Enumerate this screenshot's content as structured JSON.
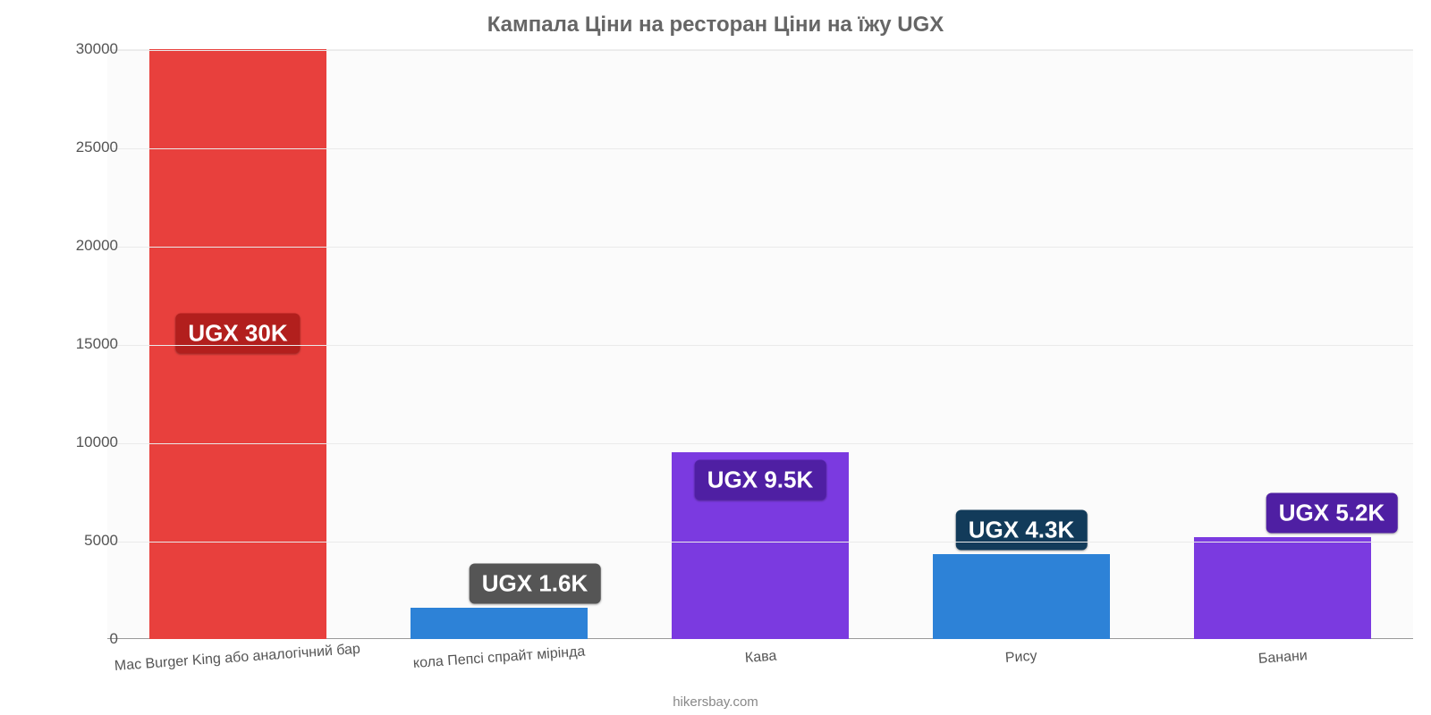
{
  "chart": {
    "type": "bar",
    "title": "Кампала Ціни на ресторан Ціни на їжу UGX",
    "title_fontsize": 24,
    "title_color": "#666666",
    "background_color": "#ffffff",
    "plot_background_color": "#fbfbfb",
    "grid_color": "#eaeaea",
    "axis_color": "#999999",
    "tick_color": "#555555",
    "tick_fontsize": 17,
    "xlabel_fontsize": 16,
    "credit": "hikersbay.com",
    "credit_fontsize": 15,
    "credit_color": "#888888",
    "ylim": [
      0,
      30000
    ],
    "yticks": [
      0,
      5000,
      10000,
      15000,
      20000,
      25000,
      30000
    ],
    "categories": [
      "Mac Burger King або аналогічний бар",
      "кола Пепсі спрайт мірінда",
      "Кава",
      "Рису",
      "Банани"
    ],
    "values": [
      30000,
      1600,
      9500,
      4300,
      5200
    ],
    "bar_colors": [
      "#e8403d",
      "#2d82d7",
      "#7b3ae0",
      "#2d82d7",
      "#7b3ae0"
    ],
    "value_labels": [
      "UGX 30K",
      "UGX 1.6K",
      "UGX 9.5K",
      "UGX 4.3K",
      "UGX 5.2K"
    ],
    "badge_colors": [
      "#b21f1d",
      "#555555",
      "#4f1fa3",
      "#123b5a",
      "#4f1fa3"
    ],
    "badge_fontsize": 26,
    "bar_width_ratio": 0.68
  }
}
